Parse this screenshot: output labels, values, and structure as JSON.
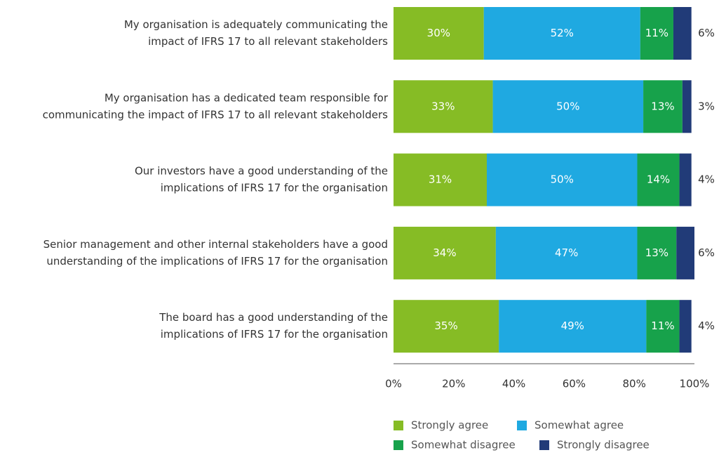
{
  "chart_data": {
    "type": "stacked-bar-horizontal",
    "categories": [
      [
        "My organisation is adequately communicating the",
        "impact of IFRS 17 to all relevant stakeholders"
      ],
      [
        "My organisation has a dedicated team responsible for",
        "communicating the impact of IFRS 17 to all relevant stakeholders"
      ],
      [
        "Our investors have a good understanding of the",
        "implications of IFRS 17 for the organisation"
      ],
      [
        "Senior management and other internal stakeholders have a good",
        "understanding of the implications of IFRS 17 for the organisation"
      ],
      [
        "The board has a good understanding of the",
        "implications of IFRS 17 for the organisation"
      ]
    ],
    "series": [
      {
        "name": "Strongly agree",
        "color": "#86bc25",
        "values": [
          30,
          33,
          31,
          34,
          35
        ],
        "value_labels": [
          "30%",
          "33%",
          "31%",
          "34%",
          "35%"
        ]
      },
      {
        "name": "Somewhat agree",
        "color": "#1fa9e1",
        "values": [
          52,
          50,
          50,
          47,
          49
        ],
        "value_labels": [
          "52%",
          "50%",
          "50%",
          "47%",
          "49%"
        ]
      },
      {
        "name": "Somewhat disagree",
        "color": "#17a24b",
        "values": [
          11,
          13,
          14,
          13,
          11
        ],
        "value_labels": [
          "11%",
          "13%",
          "14%",
          "13%",
          "11%"
        ]
      },
      {
        "name": "Strongly disagree",
        "color": "#213b78",
        "values": [
          6,
          3,
          4,
          6,
          4
        ],
        "value_labels": [
          "6%",
          "3%",
          "4%",
          "6%",
          "4%"
        ]
      }
    ],
    "xlim": [
      0,
      100
    ],
    "xticks": [
      {
        "value": 0,
        "label": "0%"
      },
      {
        "value": 20,
        "label": "20%"
      },
      {
        "value": 40,
        "label": "40%"
      },
      {
        "value": 60,
        "label": "60%"
      },
      {
        "value": 80,
        "label": "80%"
      },
      {
        "value": 100,
        "label": "100%"
      }
    ],
    "legend": "bottom"
  }
}
